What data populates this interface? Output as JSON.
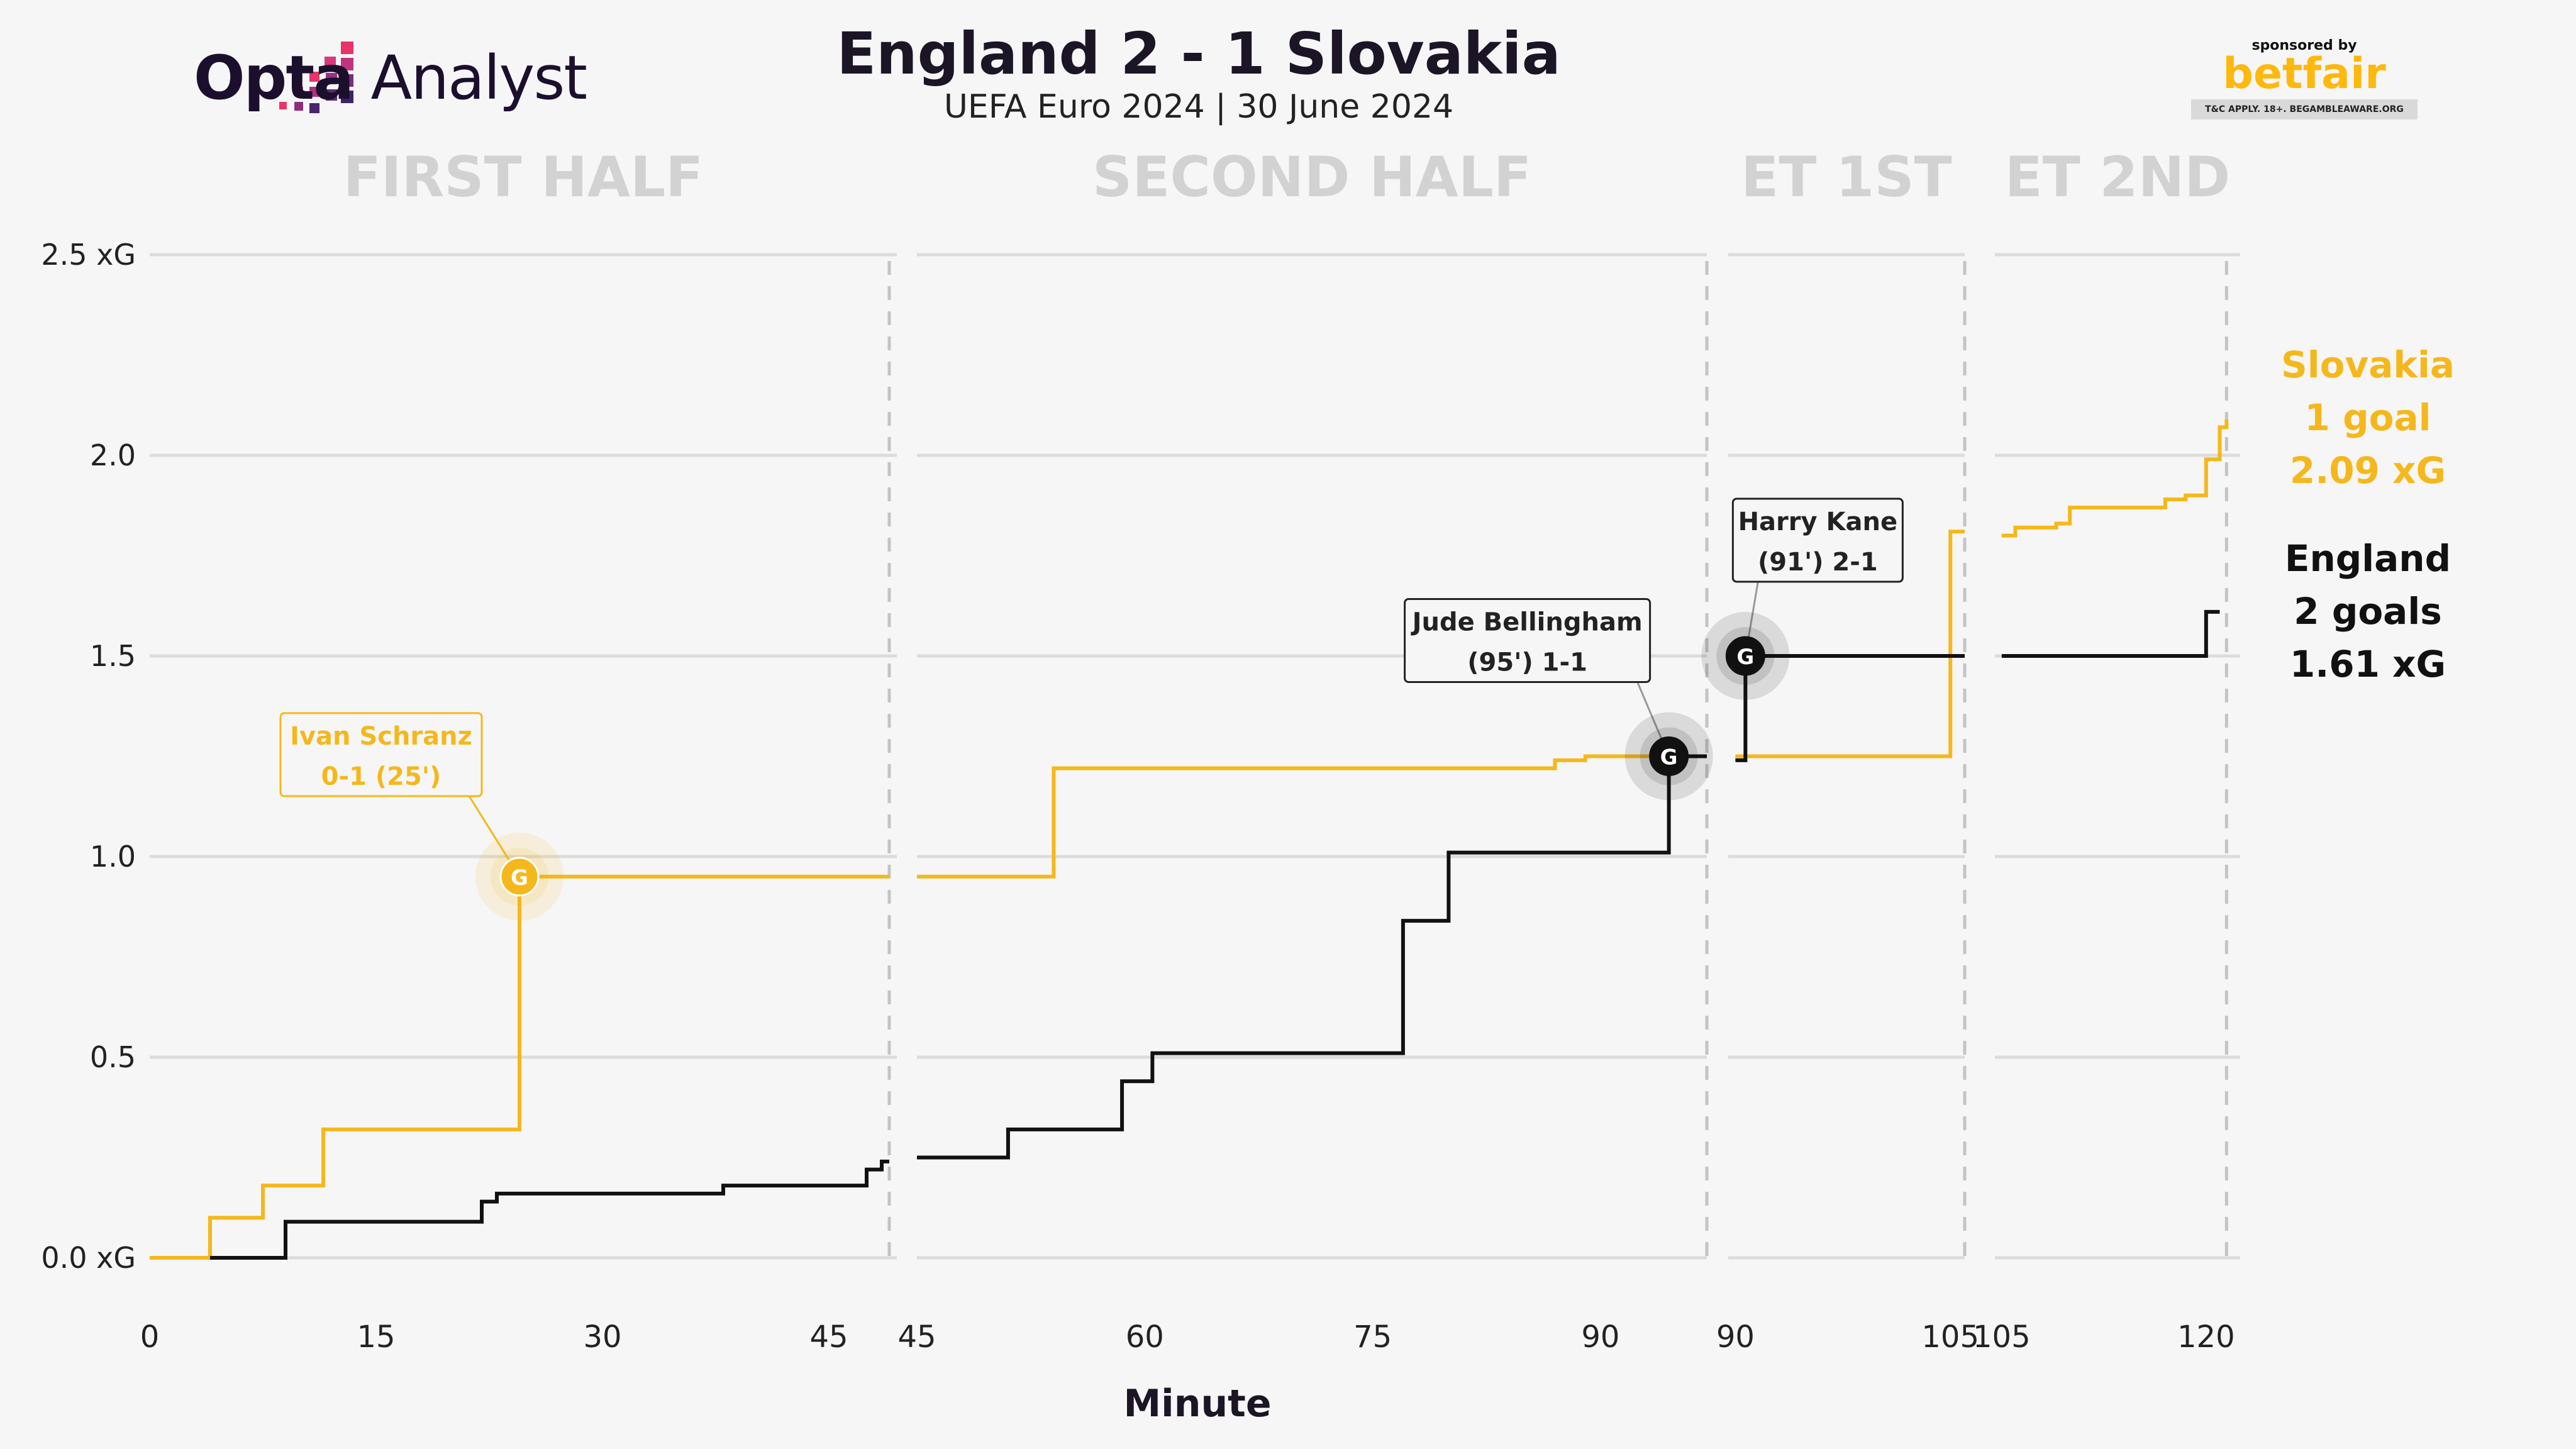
{
  "header": {
    "logo_text_bold": "Opta",
    "logo_text_light": " Analyst",
    "title": "England 2 - 1 Slovakia",
    "subtitle": "UEFA Euro 2024 | 30 June 2024"
  },
  "sponsor": {
    "label": "sponsored by",
    "brand": "betfair",
    "terms": "T&C APPLY. 18+. BEGAMBLEAWARE.ORG"
  },
  "legend": {
    "slovakia": {
      "team": "Slovakia",
      "goals": "1 goal",
      "xg": "2.09 xG"
    },
    "england": {
      "team": "England",
      "goals": "2 goals",
      "xg": "1.61 xG"
    }
  },
  "colors": {
    "slovakia": "#f5b81c",
    "england": "#111111",
    "grid": "#dcdcdc",
    "period_label": "#d2d2d2"
  },
  "chart_data": {
    "type": "line",
    "subtype": "step",
    "xlabel": "Minute",
    "ylabel": "",
    "ylim": [
      0,
      2.5
    ],
    "y_ticks": [
      {
        "value": 0,
        "label": "0.0 xG"
      },
      {
        "value": 0.5,
        "label": "0.5"
      },
      {
        "value": 1.0,
        "label": "1.0"
      },
      {
        "value": 1.5,
        "label": "1.5"
      },
      {
        "value": 2.0,
        "label": "2.0"
      },
      {
        "value": 2.5,
        "label": "2.5 xG"
      }
    ],
    "grid": true,
    "periods": [
      {
        "label": "FIRST HALF",
        "xlim": [
          0,
          49.5
        ],
        "end_line": 49,
        "ticks": [
          0,
          15,
          30,
          45
        ]
      },
      {
        "label": "SECOND HALF",
        "xlim": [
          45,
          97
        ],
        "end_line": 97,
        "ticks": [
          45,
          60,
          75,
          90
        ]
      },
      {
        "label": "ET 1ST",
        "xlim": [
          89.5,
          106
        ],
        "end_line": 106,
        "ticks": [
          90,
          105
        ]
      },
      {
        "label": "ET 2ND",
        "xlim": [
          104.5,
          122.5
        ],
        "end_line": 121.5,
        "ticks": [
          105,
          120
        ]
      }
    ],
    "series": [
      {
        "name": "Slovakia",
        "color": "#f5b81c",
        "segments": [
          {
            "period": 0,
            "start": 0,
            "end": 49,
            "points": [
              [
                0,
                0
              ],
              [
                4,
                0.1
              ],
              [
                7.5,
                0.18
              ],
              [
                11.5,
                0.32
              ],
              [
                24.5,
                0.95
              ]
            ]
          },
          {
            "period": 1,
            "start": 45,
            "end": 97,
            "points": [
              [
                45,
                0.95
              ],
              [
                54,
                1.22
              ],
              [
                87,
                1.24
              ],
              [
                89,
                1.25
              ]
            ]
          },
          {
            "period": 2,
            "start": 90,
            "end": 106,
            "points": [
              [
                90,
                1.25
              ],
              [
                105,
                1.81
              ]
            ]
          },
          {
            "period": 3,
            "start": 105,
            "end": 121.5,
            "points": [
              [
                105,
                1.8
              ],
              [
                106,
                1.82
              ],
              [
                109,
                1.83
              ],
              [
                110,
                1.87
              ],
              [
                117,
                1.89
              ],
              [
                118.5,
                1.9
              ],
              [
                120,
                1.99
              ],
              [
                121,
                2.07
              ],
              [
                121.5,
                2.09
              ]
            ]
          }
        ]
      },
      {
        "name": "England",
        "color": "#111111",
        "segments": [
          {
            "period": 0,
            "start": 4,
            "end": 49,
            "points": [
              [
                4,
                0
              ],
              [
                9,
                0.09
              ],
              [
                22,
                0.14
              ],
              [
                23,
                0.16
              ],
              [
                38,
                0.18
              ],
              [
                47.5,
                0.22
              ],
              [
                48.5,
                0.24
              ]
            ]
          },
          {
            "period": 1,
            "start": 45,
            "end": 97,
            "points": [
              [
                45,
                0.25
              ],
              [
                51,
                0.32
              ],
              [
                58.5,
                0.44
              ],
              [
                60.5,
                0.51
              ],
              [
                77,
                0.84
              ],
              [
                80,
                1.01
              ],
              [
                94.5,
                1.25
              ]
            ]
          },
          {
            "period": 2,
            "start": 90,
            "end": 106,
            "points": [
              [
                90,
                1.24
              ],
              [
                90.7,
                1.5
              ]
            ]
          },
          {
            "period": 3,
            "start": 105,
            "end": 121,
            "points": [
              [
                105,
                1.5
              ],
              [
                120,
                1.61
              ]
            ]
          }
        ]
      }
    ],
    "goals": [
      {
        "team": "Slovakia",
        "period": 0,
        "minute": 24.5,
        "xg": 0.95,
        "marker": "G",
        "label_lines": [
          "Ivan Schranz",
          "0-1 (25')"
        ],
        "label_pos": "upper-left"
      },
      {
        "team": "England",
        "period": 1,
        "minute": 94.5,
        "xg": 1.25,
        "marker": "G",
        "label_lines": [
          "Jude Bellingham",
          "(95') 1-1"
        ],
        "label_pos": "upper-left"
      },
      {
        "team": "England",
        "period": 2,
        "minute": 90.7,
        "xg": 1.5,
        "marker": "G",
        "label_lines": [
          "Harry Kane",
          "(91') 2-1"
        ],
        "label_pos": "upper"
      }
    ]
  }
}
